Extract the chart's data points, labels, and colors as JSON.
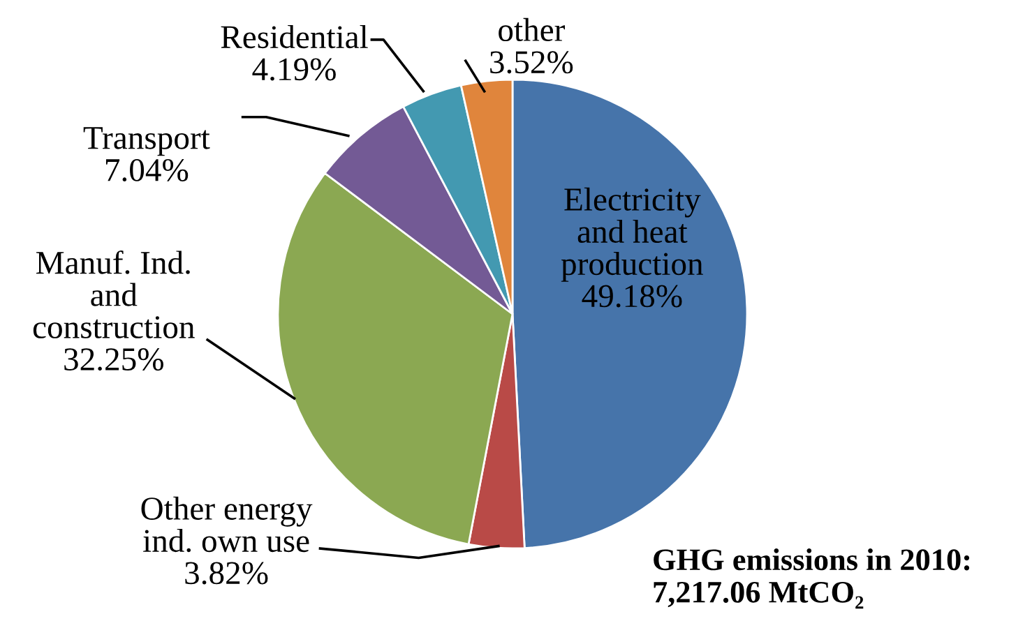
{
  "chart_data": {
    "type": "pie",
    "categories": [
      "Electricity\nand heat\nproduction",
      "Other energy\nind. own use",
      "Manuf. Ind.\nand\nconstruction",
      "Transport",
      "Residential",
      "other"
    ],
    "values": [
      49.18,
      3.82,
      32.25,
      7.04,
      4.19,
      3.52
    ],
    "value_labels": [
      "49.18%",
      "3.82%",
      "32.25%",
      "7.04%",
      "4.19%",
      "3.52%"
    ],
    "colors": [
      "#4674aa",
      "#b94a47",
      "#8ba852",
      "#735a95",
      "#4399b1",
      "#e0853c"
    ],
    "annotations": [
      "GHG emissions in 2010:\n7,217.06 MtCO₂"
    ]
  }
}
